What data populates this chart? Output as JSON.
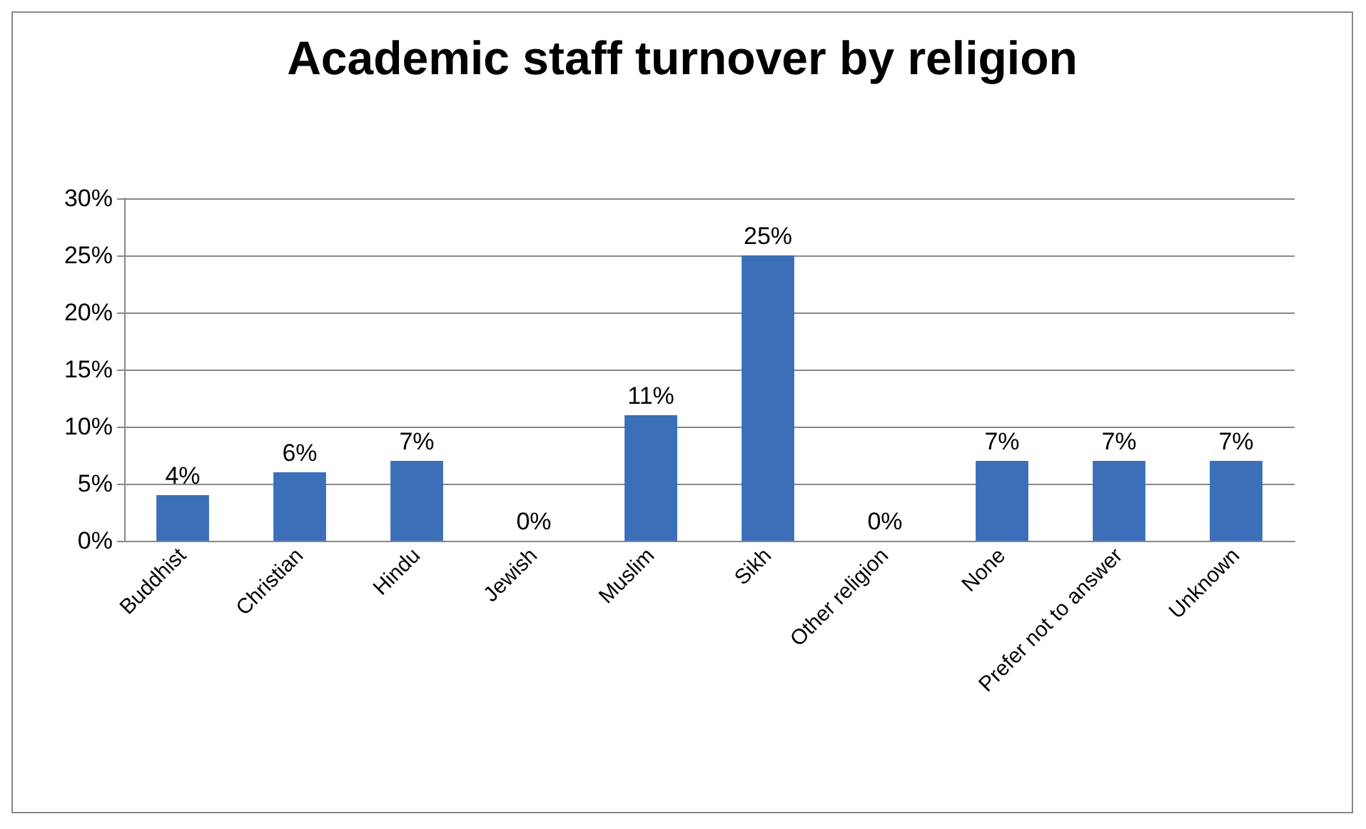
{
  "chart_data": {
    "type": "bar",
    "title": "Academic staff turnover by religion",
    "categories": [
      "Buddhist",
      "Christian",
      "Hindu",
      "Jewish",
      "Muslim",
      "Sikh",
      "Other religion",
      "None",
      "Prefer not to answer",
      "Unknown"
    ],
    "values": [
      4,
      6,
      7,
      0,
      11,
      25,
      0,
      7,
      7,
      7
    ],
    "color": "#3b6fb8",
    "value_labels": [
      "4%",
      "6%",
      "7%",
      "0%",
      "11%",
      "25%",
      "0%",
      "7%",
      "7%",
      "7%"
    ],
    "ylim": [
      0,
      30
    ],
    "yticks": [
      {
        "value": 0,
        "label": "0%"
      },
      {
        "value": 5,
        "label": "5%"
      },
      {
        "value": 10,
        "label": "10%"
      },
      {
        "value": 15,
        "label": "15%"
      },
      {
        "value": 20,
        "label": "20%"
      },
      {
        "value": 25,
        "label": "25%"
      },
      {
        "value": 30,
        "label": "30%"
      }
    ],
    "grid": "y"
  }
}
